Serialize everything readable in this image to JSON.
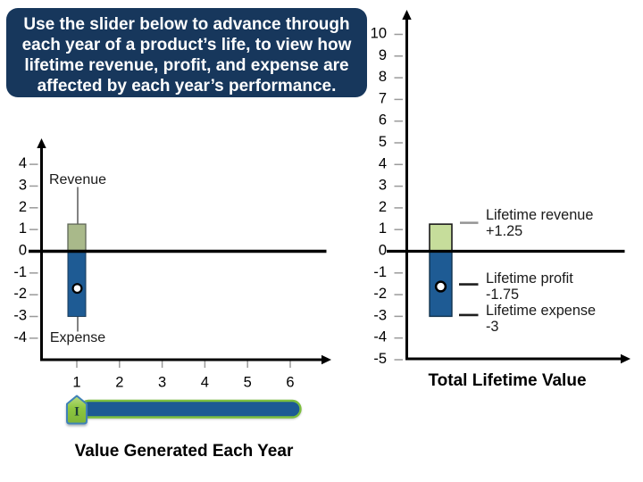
{
  "banner": {
    "lines": [
      "Use the slider below to advance through",
      "each year of a product’s life, to view how",
      "lifetime revenue, profit, and expense are",
      "affected by each year’s performance."
    ],
    "background_color": "#17375c",
    "text_color": "#ffffff"
  },
  "left_chart": {
    "title": "Value Generated Each Year",
    "revenue_label": "Revenue",
    "expense_label": "Expense",
    "y_ticks": [
      4,
      3,
      2,
      1,
      0,
      -1,
      -2,
      -3,
      -4
    ],
    "x_ticks": [
      1,
      2,
      3,
      4,
      5,
      6
    ],
    "year": 1,
    "revenue": 1.25,
    "expense": -3,
    "profit": -1.75
  },
  "right_chart": {
    "title": "Total Lifetime Value",
    "y_ticks": [
      10,
      9,
      8,
      7,
      6,
      5,
      4,
      3,
      2,
      1,
      0,
      -1,
      -2,
      -3,
      -4,
      -5
    ],
    "lifetime_revenue": 1.25,
    "lifetime_expense": -3,
    "lifetime_profit": -1.75,
    "annotations": [
      {
        "label": "Lifetime revenue",
        "value": "+1.25"
      },
      {
        "label": "Lifetime profit",
        "value": "-1.75"
      },
      {
        "label": "Lifetime expense",
        "value": "-3"
      }
    ]
  },
  "slider": {
    "value": 1,
    "min": 1,
    "max": 6,
    "handle_glyph": "I"
  },
  "colors": {
    "banner_navy": "#17375c",
    "bar_blue": "#1e5b94",
    "bar_green_left": "#a9b98a",
    "bar_green_right": "#c6dd9b",
    "axis_black": "#000000",
    "tick_gray": "#9a9a9a",
    "leader_gray": "#595959",
    "dash_gray": "#949494",
    "dash_dark": "#1f1f1f",
    "track_fill": "#1d5a94",
    "track_border": "#7cbe3e",
    "handle_fill": "#8dc63f",
    "handle_fill_light": "#b9dc85",
    "handle_border": "#3f81b8",
    "handle_glyph_color": "#1c3f38",
    "marker_fill": "#ffffff",
    "marker_border": "#000000"
  },
  "chart_data": [
    {
      "id": "value-generated-each-year",
      "type": "bar",
      "title": "Value Generated Each Year",
      "x": [
        1
      ],
      "series": [
        {
          "name": "Revenue",
          "values": [
            1.25
          ]
        },
        {
          "name": "Expense",
          "values": [
            -3
          ]
        },
        {
          "name": "Profit marker",
          "values": [
            -1.75
          ]
        }
      ],
      "x_ticks": [
        1,
        2,
        3,
        4,
        5,
        6
      ],
      "y_ticks": [
        4,
        3,
        2,
        1,
        0,
        -1,
        -2,
        -3,
        -4
      ],
      "ylim": [
        -5,
        5
      ],
      "grid": false,
      "annotations": [
        "Revenue",
        "Expense"
      ]
    },
    {
      "id": "total-lifetime-value",
      "type": "bar",
      "title": "Total Lifetime Value",
      "categories": [
        "Total Lifetime Value"
      ],
      "series": [
        {
          "name": "Lifetime revenue",
          "values": [
            1.25
          ]
        },
        {
          "name": "Lifetime expense",
          "values": [
            -3
          ]
        },
        {
          "name": "Lifetime profit",
          "values": [
            -1.75
          ]
        }
      ],
      "y_ticks": [
        10,
        9,
        8,
        7,
        6,
        5,
        4,
        3,
        2,
        1,
        0,
        -1,
        -2,
        -3,
        -4,
        -5
      ],
      "ylim": [
        -5,
        10.6
      ],
      "grid": false,
      "annotations": [
        "Lifetime revenue +1.25",
        "Lifetime profit -1.75",
        "Lifetime expense -3"
      ]
    }
  ]
}
